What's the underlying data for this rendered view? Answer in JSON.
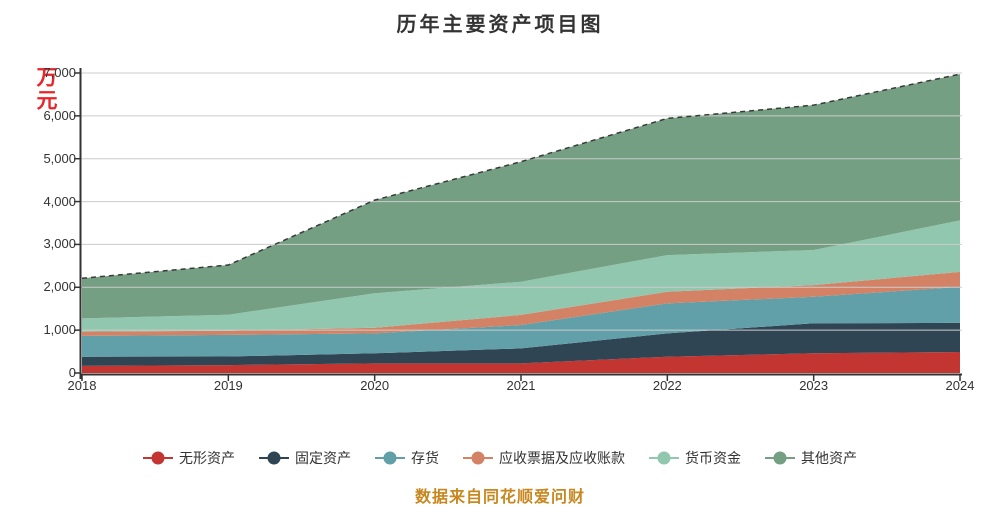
{
  "page": {
    "background": "#ffffff",
    "text_color": "#333333",
    "gridline_color": "#cccccc",
    "axis_color": "#333333"
  },
  "header": {
    "title": "历年主要资产项目图"
  },
  "y_axis": {
    "unit_label": "万元",
    "unit_color": "#e8252a",
    "tick_labels": [
      "7,000",
      "6,000",
      "5,000",
      "4,000",
      "3,000",
      "2,000",
      "1,000",
      "0"
    ]
  },
  "watermark": {
    "text": "数据来自同花顺爱问财",
    "color": "#c8871f"
  },
  "chart_data": {
    "type": "area",
    "stacked": true,
    "title": "历年主要资产项目图",
    "xlabel": "",
    "ylabel": "万元",
    "categories": [
      "2018",
      "2019",
      "2020",
      "2021",
      "2022",
      "2023",
      "2024"
    ],
    "series": [
      {
        "name": "无形资产",
        "color": "#c23531",
        "values": [
          165,
          185,
          225,
          225,
          380,
          460,
          490
        ]
      },
      {
        "name": "固定资产",
        "color": "#2f4554",
        "values": [
          215,
          200,
          235,
          350,
          545,
          700,
          680
        ]
      },
      {
        "name": "存货",
        "color": "#61a0a8",
        "values": [
          485,
          505,
          465,
          545,
          700,
          620,
          840
        ]
      },
      {
        "name": "应收票据及应收账款",
        "color": "#d48265",
        "values": [
          100,
          95,
          130,
          235,
          270,
          270,
          350
        ]
      },
      {
        "name": "货币资金",
        "color": "#91c7ae",
        "values": [
          310,
          375,
          805,
          775,
          855,
          820,
          1200
        ]
      },
      {
        "name": "其他资产",
        "color": "#749f83",
        "values": [
          935,
          1160,
          2175,
          2800,
          3190,
          3380,
          3415
        ]
      }
    ],
    "totals": [
      2210,
      2520,
      4035,
      4930,
      5940,
      6250,
      6975
    ],
    "ylim": [
      0,
      7000
    ],
    "y_tick_step": 1000,
    "grid": true,
    "legend_position": "bottom",
    "top_line_style": "dashed"
  }
}
